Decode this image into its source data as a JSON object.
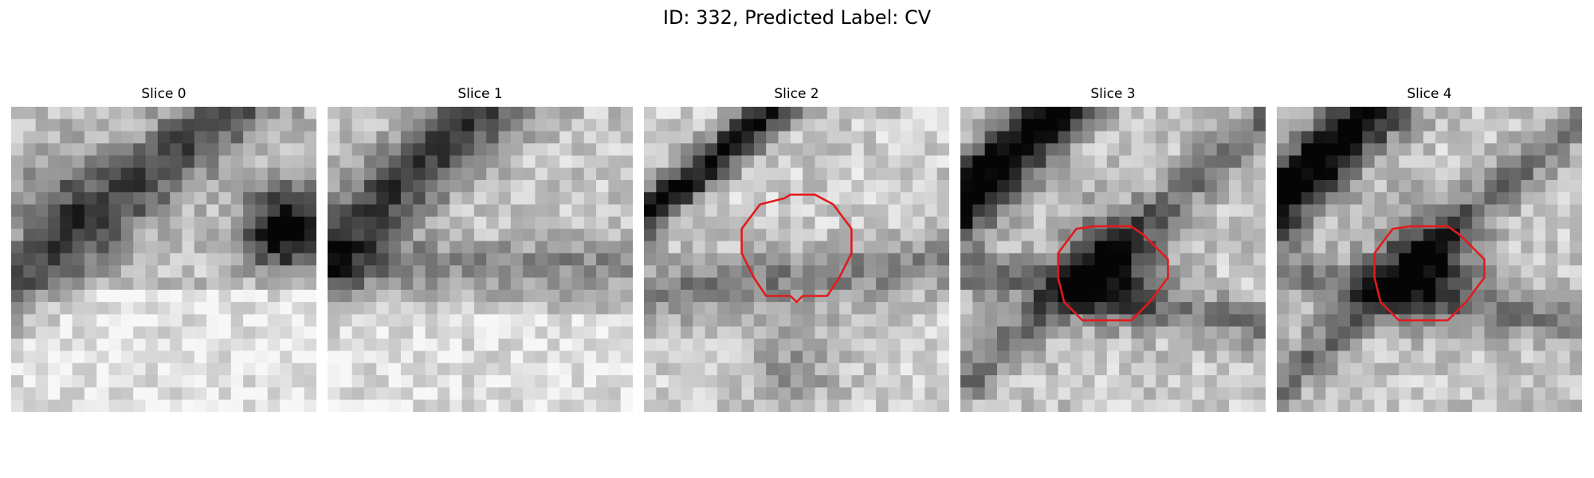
{
  "figure": {
    "title": "ID: 332, Predicted Label: CV"
  },
  "panels": [
    {
      "title": "Slice 0",
      "has_contour": false
    },
    {
      "title": "Slice 1",
      "has_contour": false
    },
    {
      "title": "Slice 2",
      "has_contour": true
    },
    {
      "title": "Slice 3",
      "has_contour": true
    },
    {
      "title": "Slice 4",
      "has_contour": true
    }
  ],
  "colors": {
    "contour": "#e31a1c",
    "background": "#ffffff"
  },
  "image": {
    "colormap": "grayscale",
    "grid_cells": 25
  }
}
